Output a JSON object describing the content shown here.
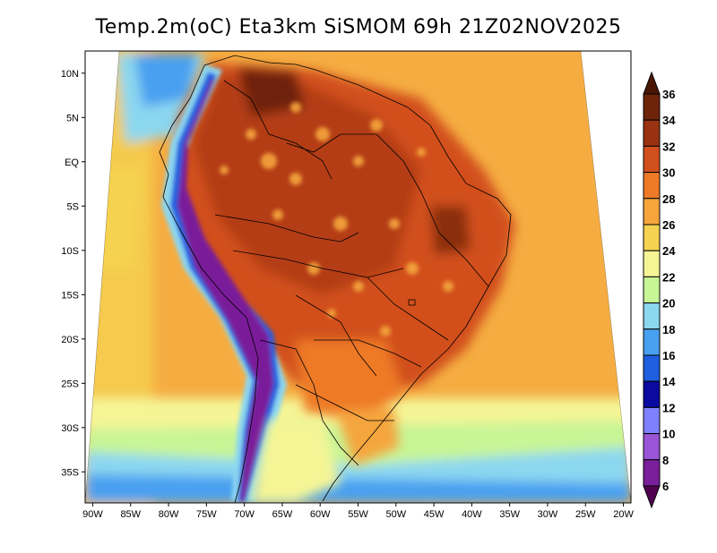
{
  "title": "Temp.2m(oC)  Eta3km  SiSMOM  69h  21Z02NOV2025",
  "map": {
    "longitude_ticks": [
      "90W",
      "85W",
      "80W",
      "75W",
      "70W",
      "65W",
      "60W",
      "55W",
      "50W",
      "45W",
      "40W",
      "35W",
      "30W",
      "25W",
      "20W"
    ],
    "latitude_ticks": [
      "10N",
      "5N",
      "EQ",
      "5S",
      "10S",
      "15S",
      "20S",
      "25S",
      "30S",
      "35S"
    ],
    "lon_range": [
      -91,
      -19
    ],
    "lat_range": [
      -38.5,
      12.5
    ]
  },
  "colorbar": {
    "unit": "oC",
    "levels": [
      6,
      8,
      10,
      12,
      14,
      16,
      18,
      20,
      22,
      24,
      26,
      28,
      30,
      32,
      34,
      36
    ],
    "labels": [
      "36",
      "34",
      "32",
      "30",
      "28",
      "26",
      "24",
      "22",
      "20",
      "18",
      "16",
      "14",
      "12",
      "10",
      "8",
      "6"
    ],
    "colors": [
      "#500050",
      "#7a1f9a",
      "#9a55d6",
      "#7f80ff",
      "#0a0aa0",
      "#1e5fe0",
      "#48a0f0",
      "#8cd7f0",
      "#c8f596",
      "#f5f596",
      "#f5d250",
      "#f5a53c",
      "#ee7a28",
      "#d2501e",
      "#9a3212",
      "#6e2408",
      "#4a1604"
    ]
  }
}
